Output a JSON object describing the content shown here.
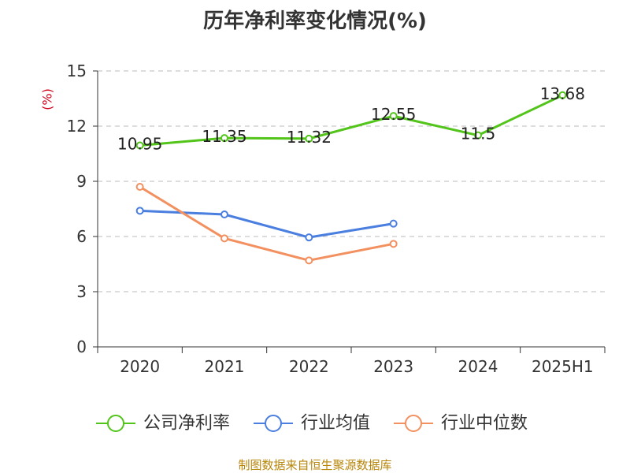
{
  "chart_data": {
    "type": "line",
    "title": "历年净利率变化情况(%)",
    "xlabel": "",
    "ylabel": "(%)",
    "categories": [
      "2020",
      "2021",
      "2022",
      "2023",
      "2024",
      "2025H1"
    ],
    "ylim": [
      0,
      15
    ],
    "yticks": [
      0,
      3,
      6,
      9,
      12,
      15
    ],
    "grid": true,
    "legend_position": "bottom",
    "series": [
      {
        "name": "公司净利率",
        "color": "#52c41a",
        "values": [
          10.95,
          11.35,
          11.32,
          12.55,
          11.5,
          13.68
        ],
        "labels": [
          "10.95",
          "11.35",
          "11.32",
          "12.55",
          "11.5",
          "13.68"
        ]
      },
      {
        "name": "行业均值",
        "color": "#4a7fe0",
        "values": [
          7.4,
          7.2,
          5.95,
          6.7,
          null,
          null
        ]
      },
      {
        "name": "行业中位数",
        "color": "#f39060",
        "values": [
          8.7,
          5.9,
          4.7,
          5.6,
          null,
          null
        ]
      }
    ]
  },
  "footer": {
    "source": "制图数据来自恒生聚源数据库"
  }
}
